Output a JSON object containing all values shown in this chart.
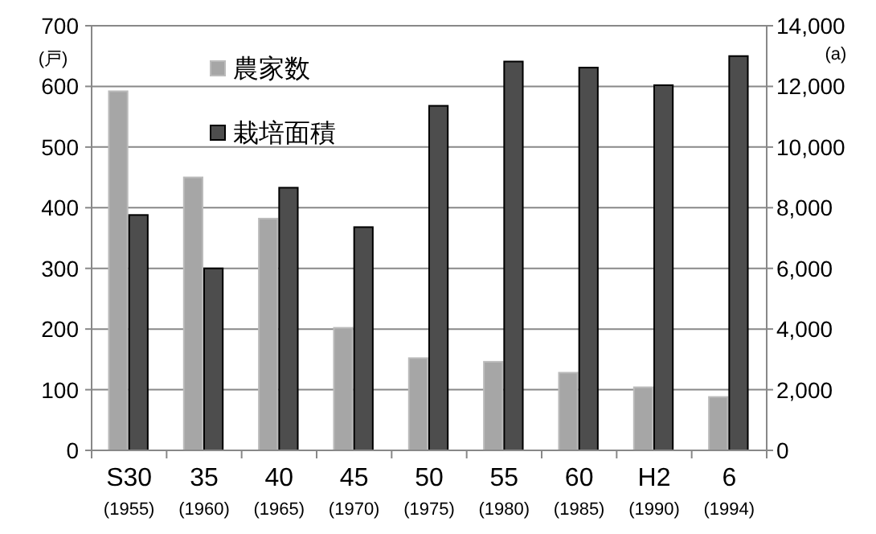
{
  "chart_data": {
    "type": "bar",
    "categories": [
      "S30\n(1955)",
      "35\n(1960)",
      "40\n(1965)",
      "45\n(1970)",
      "50\n(1975)",
      "55\n(1980)",
      "60\n(1985)",
      "H2\n(1990)",
      "6\n(1994)"
    ],
    "series": [
      {
        "name": "農家数",
        "color": "#a6a6a6",
        "values": [
          592,
          450,
          382,
          202,
          152,
          146,
          128,
          104,
          88
        ]
      },
      {
        "name": "栽培面積",
        "color": "#4d4d4d",
        "axis": "y2",
        "values": [
          7760,
          6000,
          8660,
          7360,
          11360,
          12820,
          12620,
          12040,
          13000
        ]
      }
    ],
    "ylabel": "(戸)",
    "y2label": "(a)",
    "ylim": [
      0,
      700
    ],
    "yticks": [
      0,
      100,
      200,
      300,
      400,
      500,
      600,
      700
    ],
    "y2lim": [
      0,
      14000
    ],
    "y2ticks": [
      0,
      {
        "value": 2000,
        "label": "2,000"
      },
      {
        "value": 4000,
        "label": "4,000"
      },
      {
        "value": 6000,
        "label": "6,000"
      },
      {
        "value": 8000,
        "label": "8,000"
      },
      {
        "value": 10000,
        "label": "10,000"
      },
      {
        "value": 12000,
        "label": "12,000"
      },
      {
        "value": 14000,
        "label": "14,000"
      }
    ],
    "grid": "y",
    "legend": "top left"
  }
}
